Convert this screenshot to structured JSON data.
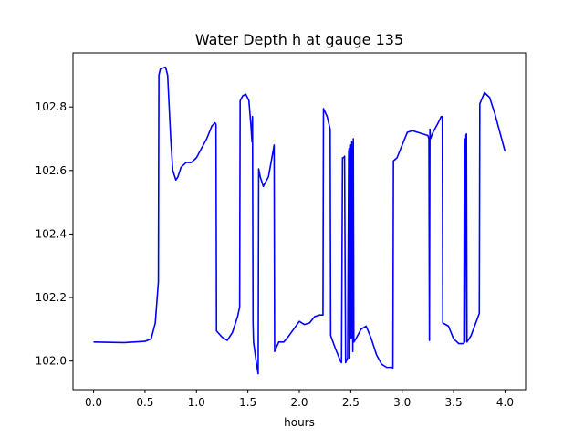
{
  "chart_data": {
    "type": "line",
    "title": "Water Depth h at gauge 135",
    "xlabel": "hours",
    "ylabel": "",
    "xlim": [
      -0.2,
      4.2
    ],
    "ylim": [
      101.91,
      102.97
    ],
    "xticks": [
      0.0,
      0.5,
      1.0,
      1.5,
      2.0,
      2.5,
      3.0,
      3.5,
      4.0
    ],
    "xtick_labels": [
      "0.0",
      "0.5",
      "1.0",
      "1.5",
      "2.0",
      "2.5",
      "3.0",
      "3.5",
      "4.0"
    ],
    "yticks": [
      102.0,
      102.2,
      102.4,
      102.6,
      102.8
    ],
    "ytick_labels": [
      "102.0",
      "102.2",
      "102.4",
      "102.6",
      "102.8"
    ],
    "grid": false,
    "series": [
      {
        "color": "#0000ff",
        "x": [
          0.0,
          0.3,
          0.5,
          0.56,
          0.6,
          0.63,
          0.635,
          0.65,
          0.7,
          0.72,
          0.75,
          0.77,
          0.8,
          0.82,
          0.85,
          0.9,
          0.95,
          1.0,
          1.05,
          1.1,
          1.15,
          1.18,
          1.19,
          1.195,
          1.25,
          1.3,
          1.35,
          1.4,
          1.42,
          1.425,
          1.45,
          1.48,
          1.51,
          1.53,
          1.54,
          1.545,
          1.55,
          1.555,
          1.58,
          1.6,
          1.605,
          1.62,
          1.65,
          1.7,
          1.75,
          1.755,
          1.76,
          1.8,
          1.85,
          1.9,
          2.0,
          2.05,
          2.1,
          2.15,
          2.2,
          2.23,
          2.235,
          2.27,
          2.3,
          2.305,
          2.35,
          2.4,
          2.41,
          2.42,
          2.43,
          2.44,
          2.45,
          2.47,
          2.48,
          2.485,
          2.49,
          2.5,
          2.505,
          2.51,
          2.52,
          2.525,
          2.53,
          2.55,
          2.6,
          2.65,
          2.7,
          2.75,
          2.8,
          2.85,
          2.9,
          2.91,
          2.915,
          2.95,
          3.0,
          3.05,
          3.1,
          3.15,
          3.2,
          3.25,
          3.26,
          3.265,
          3.27,
          3.275,
          3.3,
          3.35,
          3.38,
          3.39,
          3.395,
          3.45,
          3.5,
          3.55,
          3.6,
          3.605,
          3.61,
          3.62,
          3.625,
          3.63,
          3.67,
          3.75,
          3.755,
          3.8,
          3.85,
          3.9,
          3.95,
          4.0
        ],
        "y": [
          102.06,
          102.058,
          102.062,
          102.07,
          102.12,
          102.25,
          102.9,
          102.92,
          102.925,
          102.9,
          102.7,
          102.6,
          102.57,
          102.58,
          102.61,
          102.625,
          102.625,
          102.64,
          102.67,
          102.7,
          102.74,
          102.75,
          102.745,
          102.095,
          102.075,
          102.065,
          102.09,
          102.14,
          102.17,
          102.82,
          102.835,
          102.84,
          102.82,
          102.74,
          102.69,
          102.77,
          102.12,
          102.06,
          102.0,
          101.96,
          102.605,
          102.58,
          102.55,
          102.58,
          102.67,
          102.68,
          102.03,
          102.06,
          102.06,
          102.08,
          102.125,
          102.115,
          102.12,
          102.14,
          102.145,
          102.145,
          102.795,
          102.77,
          102.73,
          102.08,
          102.04,
          102.0,
          101.995,
          102.64,
          102.64,
          102.645,
          101.995,
          102.01,
          102.66,
          102.67,
          102.01,
          102.68,
          102.07,
          102.69,
          102.03,
          102.7,
          102.06,
          102.07,
          102.1,
          102.11,
          102.07,
          102.02,
          101.99,
          101.98,
          101.98,
          101.978,
          102.63,
          102.64,
          102.68,
          102.72,
          102.725,
          102.72,
          102.715,
          102.71,
          102.7,
          102.065,
          102.73,
          102.7,
          102.72,
          102.75,
          102.77,
          102.77,
          102.12,
          102.11,
          102.07,
          102.055,
          102.055,
          102.7,
          102.06,
          102.71,
          102.715,
          102.06,
          102.08,
          102.15,
          102.81,
          102.845,
          102.83,
          102.78,
          102.72,
          102.66
        ]
      }
    ]
  }
}
